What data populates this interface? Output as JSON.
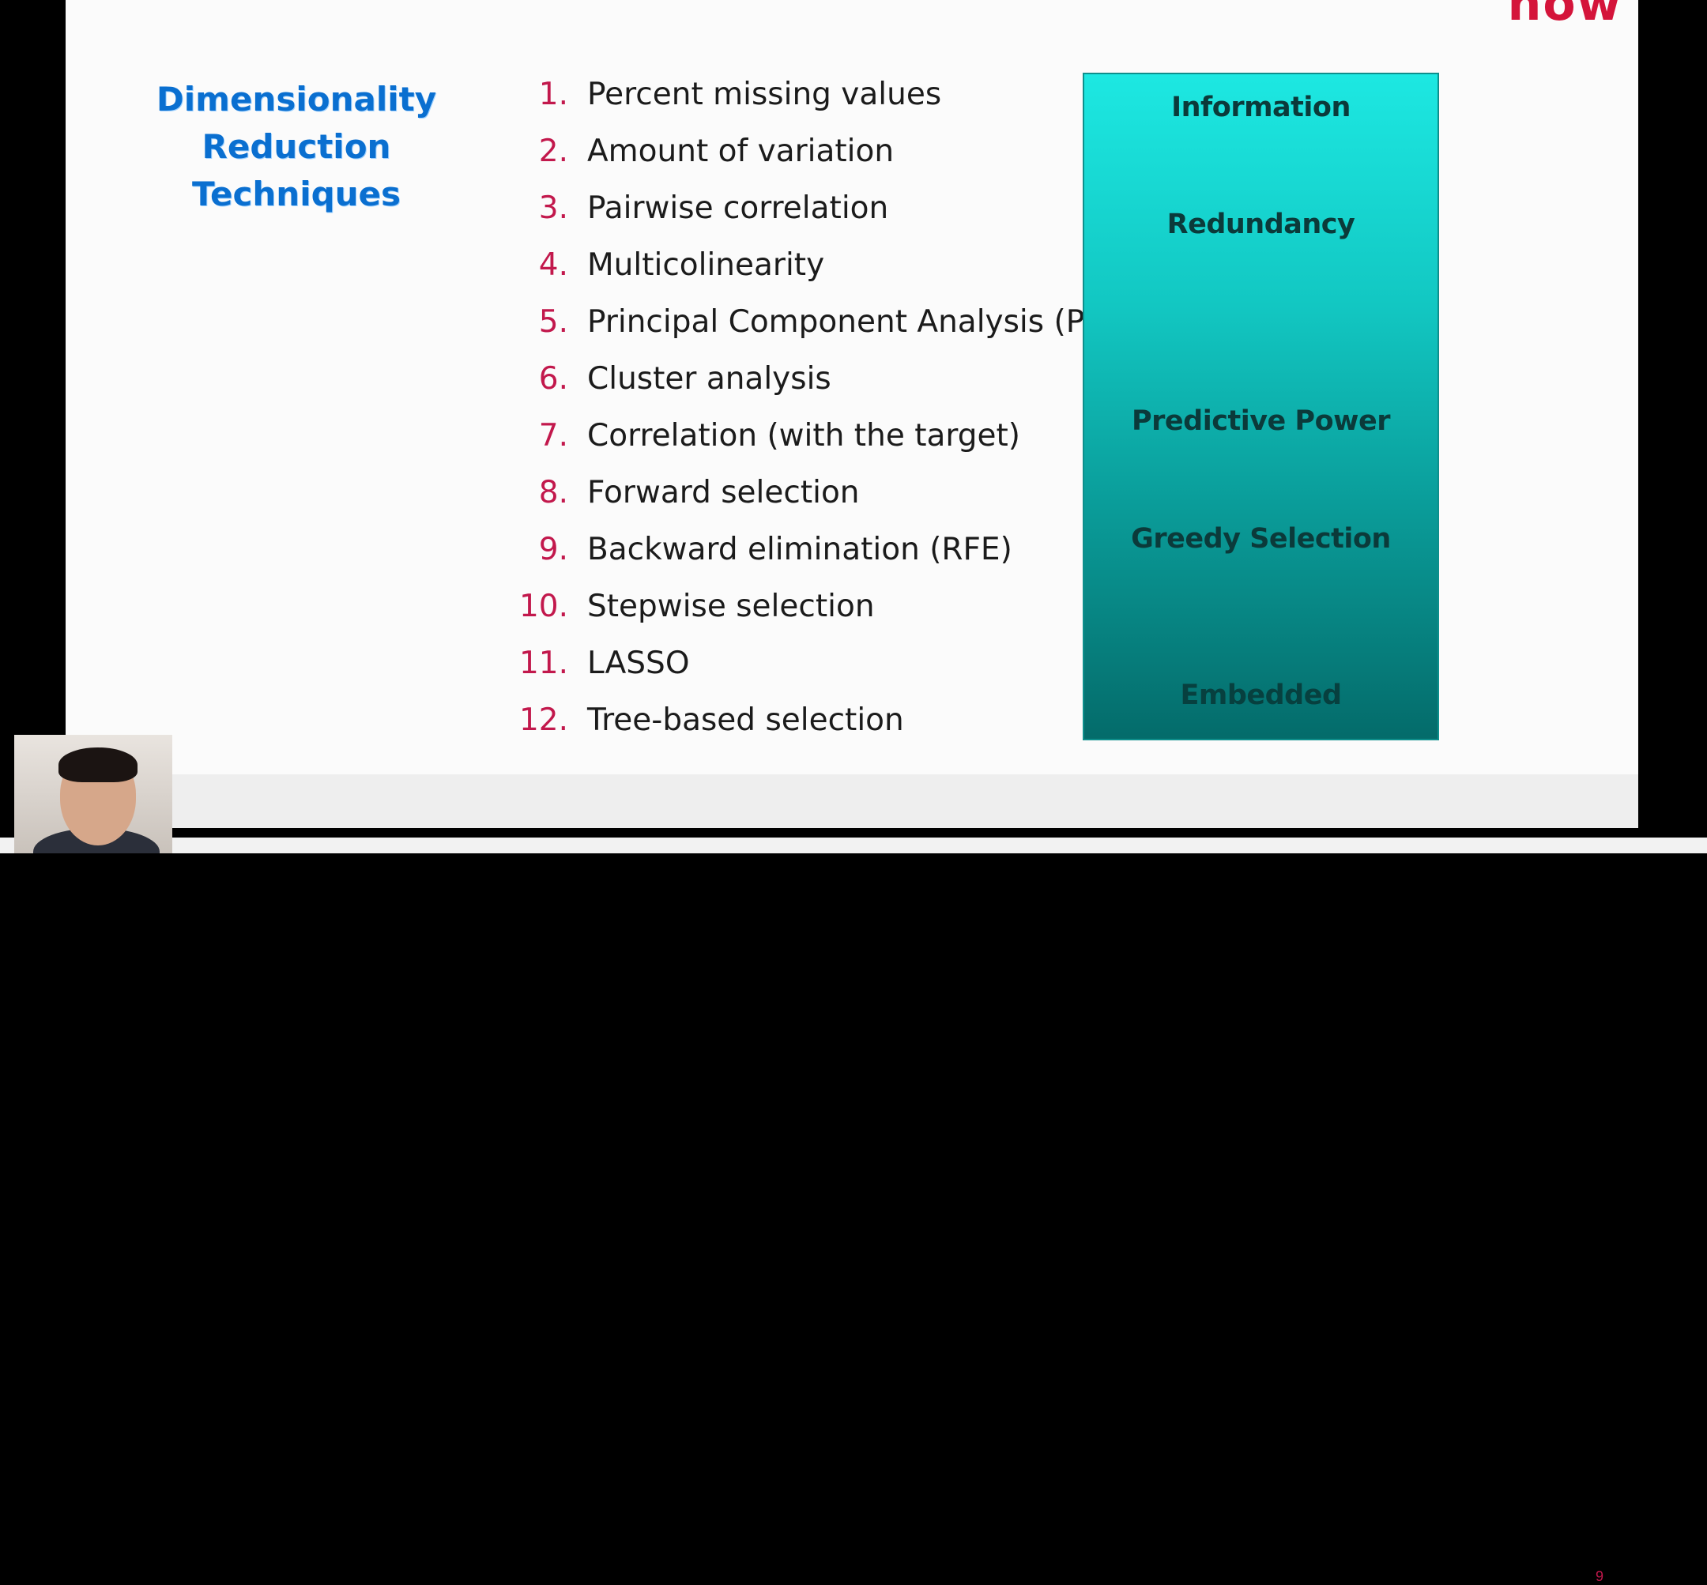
{
  "logo_text": "now",
  "side_title": [
    "Dimensionality",
    "Reduction",
    "Techniques"
  ],
  "techniques": [
    {
      "num": "1.",
      "text": "Percent missing values"
    },
    {
      "num": "2.",
      "text": "Amount of variation"
    },
    {
      "num": "3.",
      "text": "Pairwise correlation"
    },
    {
      "num": "4.",
      "text": "Multicolinearity"
    },
    {
      "num": "5.",
      "text": "Principal Component Analysis (PCA)"
    },
    {
      "num": "6.",
      "text": "Cluster analysis"
    },
    {
      "num": "7.",
      "text": "Correlation (with the target)"
    },
    {
      "num": "8.",
      "text": "Forward selection"
    },
    {
      "num": "9.",
      "text": "Backward elimination (RFE)"
    },
    {
      "num": "10.",
      "text": "Stepwise selection"
    },
    {
      "num": "11.",
      "text": "LASSO"
    },
    {
      "num": "12.",
      "text": "Tree-based selection"
    }
  ],
  "criteria": [
    "Information",
    "Redundancy",
    "Predictive Power",
    "Greedy Selection",
    "Embedded"
  ],
  "slide_number": "9",
  "colors": {
    "title_blue": "#0a6fd0",
    "number_red": "#c2184c",
    "box_top": "#1de8e2",
    "box_bottom": "#046b6a"
  }
}
